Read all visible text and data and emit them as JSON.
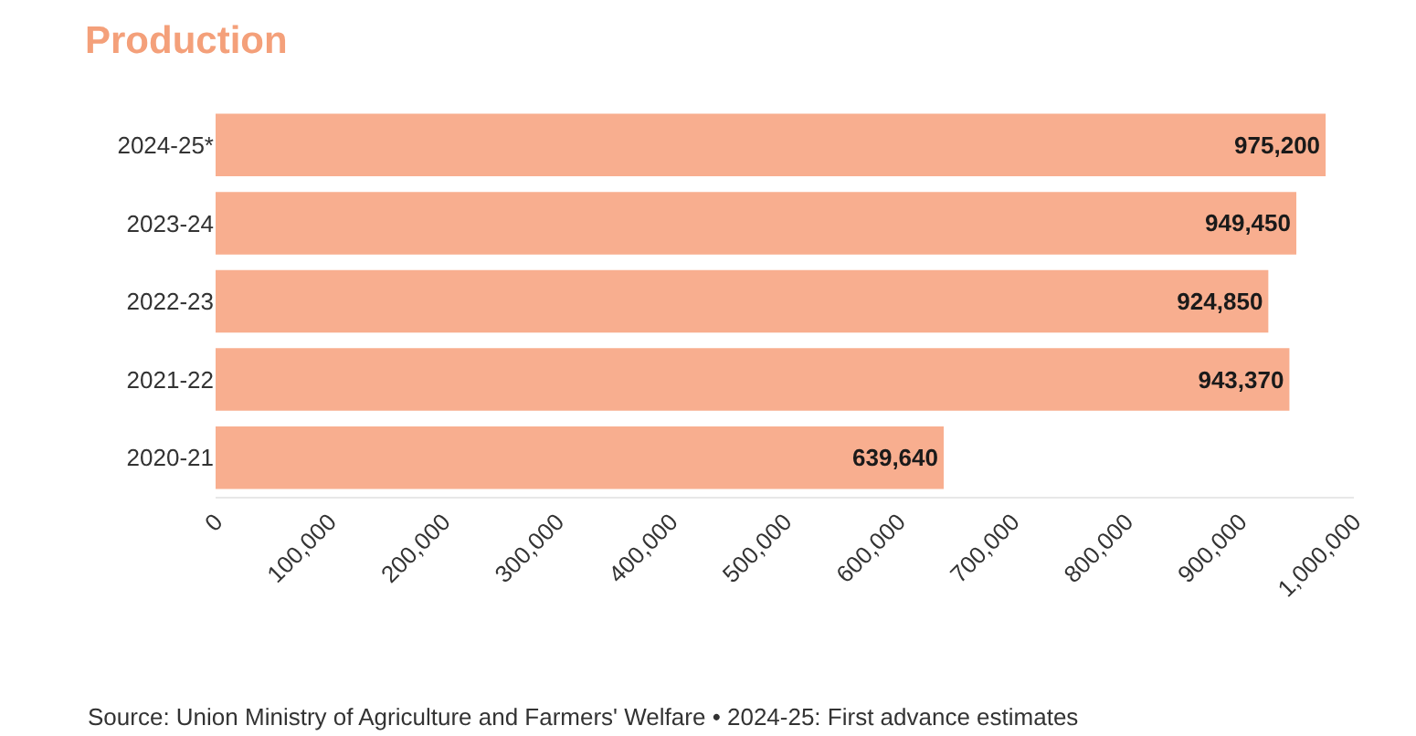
{
  "chart_data": {
    "type": "bar",
    "orientation": "horizontal",
    "title": "Production",
    "categories": [
      "2024-25*",
      "2023-24",
      "2022-23",
      "2021-22",
      "2020-21"
    ],
    "values": [
      975200,
      949450,
      924850,
      943370,
      639640
    ],
    "value_labels": [
      "975,200",
      "949,450",
      "924,850",
      "943,370",
      "639,640"
    ],
    "color": "#f8ae8f",
    "xlim": [
      0,
      1000000
    ],
    "xticks": [
      {
        "value": 0,
        "label": "0"
      },
      {
        "value": 100000,
        "label": "100,000"
      },
      {
        "value": 200000,
        "label": "200,000"
      },
      {
        "value": 300000,
        "label": "300,000"
      },
      {
        "value": 400000,
        "label": "400,000"
      },
      {
        "value": 500000,
        "label": "500,000"
      },
      {
        "value": 600000,
        "label": "600,000"
      },
      {
        "value": 700000,
        "label": "700,000"
      },
      {
        "value": 800000,
        "label": "800,000"
      },
      {
        "value": 900000,
        "label": "900,000"
      },
      {
        "value": 1000000,
        "label": "1,000,000"
      }
    ],
    "annotations": [
      "Source: Union Ministry of Agriculture and Farmers' Welfare • 2024-25: First advance estimates"
    ]
  }
}
